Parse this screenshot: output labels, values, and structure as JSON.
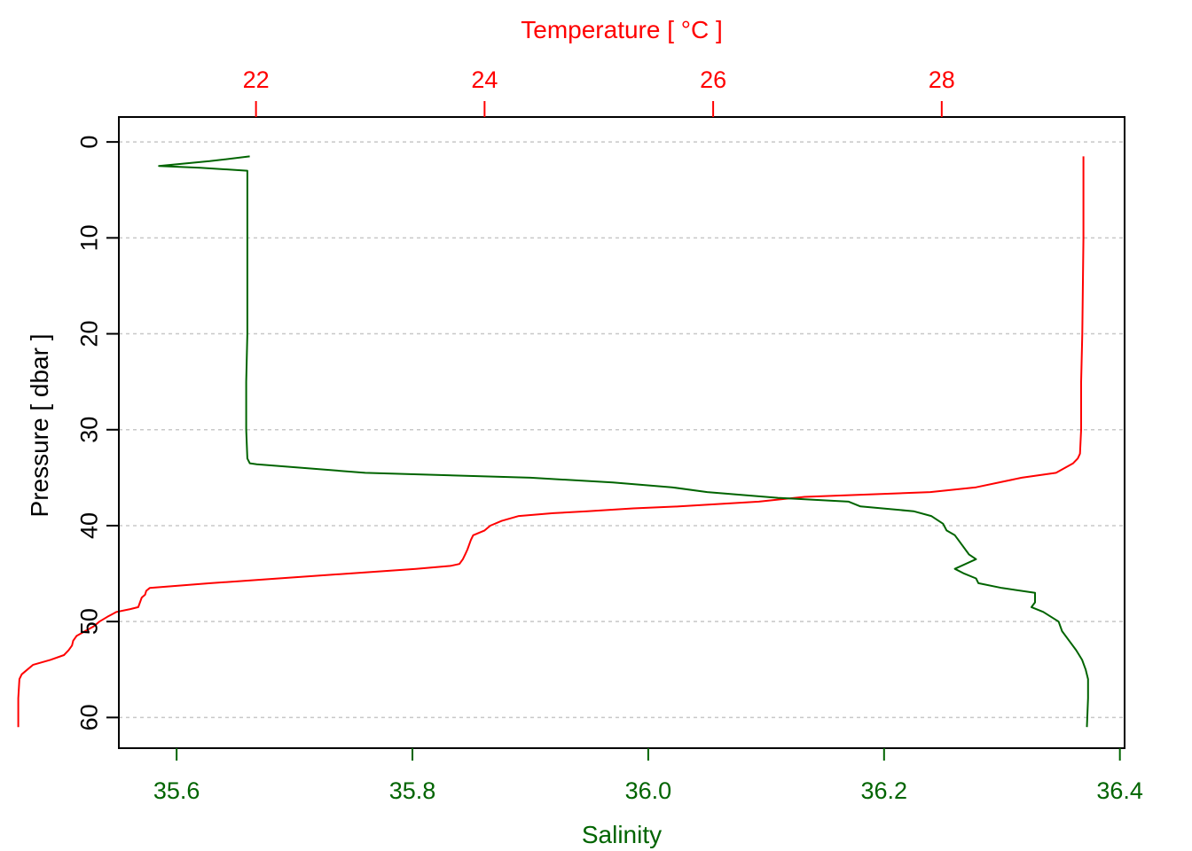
{
  "chart_data": {
    "type": "line",
    "title": "",
    "colors": {
      "temperature": "#ff0000",
      "salinity": "#006400",
      "frame": "#000000",
      "grid": "#c8c8c8"
    },
    "grid": true,
    "y_axis": {
      "label": "Pressure [ dbar ]",
      "range": [
        63.2,
        -2.6
      ],
      "reversed": true,
      "ticks": [
        0,
        10,
        20,
        30,
        40,
        50,
        60
      ],
      "tick_labels": [
        "0",
        "10",
        "20",
        "30",
        "40",
        "50",
        "60"
      ]
    },
    "top_axis": {
      "label": "Temperature [ °C ]",
      "range": [
        20.8,
        29.6
      ],
      "ticks": [
        22,
        24,
        26,
        28
      ],
      "tick_labels": [
        "22",
        "24",
        "26",
        "28"
      ]
    },
    "bottom_axis": {
      "label": "Salinity",
      "range": [
        35.551,
        36.404
      ],
      "ticks": [
        35.6,
        35.8,
        36.0,
        36.2,
        36.4
      ],
      "tick_labels": [
        "35.6",
        "35.8",
        "36.0",
        "36.2",
        "36.4"
      ]
    },
    "series": [
      {
        "name": "Temperature",
        "axis": "top",
        "points": [
          [
            29.24,
            1.5
          ],
          [
            29.24,
            3
          ],
          [
            29.24,
            10
          ],
          [
            29.23,
            20
          ],
          [
            29.22,
            25
          ],
          [
            29.22,
            30
          ],
          [
            29.21,
            32.5
          ],
          [
            29.19,
            33
          ],
          [
            29.15,
            33.5
          ],
          [
            29.0,
            34.5
          ],
          [
            28.7,
            35
          ],
          [
            28.3,
            36
          ],
          [
            27.9,
            36.5
          ],
          [
            26.8,
            37
          ],
          [
            26.4,
            37.5
          ],
          [
            25.7,
            38
          ],
          [
            25.3,
            38.2
          ],
          [
            24.9,
            38.5
          ],
          [
            24.6,
            38.7
          ],
          [
            24.3,
            39
          ],
          [
            24.15,
            39.5
          ],
          [
            24.05,
            40
          ],
          [
            24.0,
            40.5
          ],
          [
            23.9,
            41
          ],
          [
            23.88,
            41.5
          ],
          [
            23.85,
            42.5
          ],
          [
            23.83,
            43
          ],
          [
            23.81,
            43.5
          ],
          [
            23.78,
            44
          ],
          [
            23.7,
            44.2
          ],
          [
            23.4,
            44.5
          ],
          [
            22.8,
            45
          ],
          [
            22.2,
            45.5
          ],
          [
            21.6,
            46
          ],
          [
            21.07,
            46.5
          ],
          [
            21.04,
            46.8
          ],
          [
            21.03,
            47.2
          ],
          [
            21.0,
            47.5
          ],
          [
            20.97,
            48.5
          ],
          [
            20.9,
            48.7
          ],
          [
            20.78,
            49
          ],
          [
            20.7,
            49.5
          ],
          [
            20.63,
            50
          ],
          [
            20.58,
            50.5
          ],
          [
            20.43,
            51.5
          ],
          [
            20.4,
            52
          ],
          [
            20.39,
            52.5
          ],
          [
            20.36,
            53
          ],
          [
            20.32,
            53.5
          ],
          [
            20.2,
            54
          ],
          [
            20.05,
            54.5
          ],
          [
            20.0,
            55
          ],
          [
            19.95,
            55.5
          ],
          [
            19.93,
            56
          ],
          [
            19.92,
            58
          ],
          [
            19.92,
            61
          ]
        ]
      },
      {
        "name": "Salinity",
        "axis": "bottom",
        "points": [
          [
            35.662,
            1.5
          ],
          [
            35.628,
            2.0
          ],
          [
            35.585,
            2.5
          ],
          [
            35.62,
            2.7
          ],
          [
            35.66,
            3.0
          ],
          [
            35.66,
            10
          ],
          [
            35.66,
            20
          ],
          [
            35.659,
            25
          ],
          [
            35.659,
            30
          ],
          [
            35.66,
            33
          ],
          [
            35.662,
            33.5
          ],
          [
            35.668,
            33.6
          ],
          [
            35.76,
            34.5
          ],
          [
            35.9,
            35.0
          ],
          [
            35.97,
            35.5
          ],
          [
            36.02,
            36.0
          ],
          [
            36.05,
            36.5
          ],
          [
            36.11,
            37.1
          ],
          [
            36.17,
            37.5
          ],
          [
            36.18,
            38.0
          ],
          [
            36.225,
            38.5
          ],
          [
            36.24,
            39.0
          ],
          [
            36.25,
            39.8
          ],
          [
            36.253,
            40.5
          ],
          [
            36.26,
            41.0
          ],
          [
            36.263,
            41.5
          ],
          [
            36.272,
            43.0
          ],
          [
            36.278,
            43.5
          ],
          [
            36.26,
            44.5
          ],
          [
            36.268,
            45.0
          ],
          [
            36.278,
            45.5
          ],
          [
            36.28,
            46.0
          ],
          [
            36.3,
            46.5
          ],
          [
            36.328,
            47.0
          ],
          [
            36.328,
            48.0
          ],
          [
            36.325,
            48.5
          ],
          [
            36.335,
            49.0
          ],
          [
            36.348,
            50.0
          ],
          [
            36.351,
            51.0
          ],
          [
            36.357,
            52.0
          ],
          [
            36.363,
            53.0
          ],
          [
            36.368,
            54.0
          ],
          [
            36.371,
            55.0
          ],
          [
            36.373,
            56.0
          ],
          [
            36.373,
            58.0
          ],
          [
            36.372,
            61.0
          ]
        ]
      }
    ]
  }
}
